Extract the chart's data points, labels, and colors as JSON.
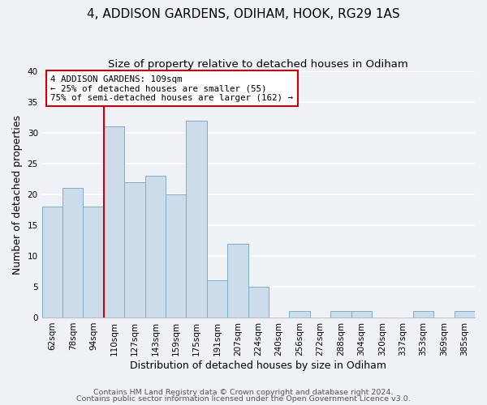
{
  "title": "4, ADDISON GARDENS, ODIHAM, HOOK, RG29 1AS",
  "subtitle": "Size of property relative to detached houses in Odiham",
  "xlabel": "Distribution of detached houses by size in Odiham",
  "ylabel": "Number of detached properties",
  "bar_labels": [
    "62sqm",
    "78sqm",
    "94sqm",
    "110sqm",
    "127sqm",
    "143sqm",
    "159sqm",
    "175sqm",
    "191sqm",
    "207sqm",
    "224sqm",
    "240sqm",
    "256sqm",
    "272sqm",
    "288sqm",
    "304sqm",
    "320sqm",
    "337sqm",
    "353sqm",
    "369sqm",
    "385sqm"
  ],
  "bar_values": [
    18,
    21,
    18,
    31,
    22,
    23,
    20,
    32,
    6,
    12,
    5,
    0,
    1,
    0,
    1,
    1,
    0,
    0,
    1,
    0,
    1
  ],
  "bar_color": "#ccdceb",
  "bar_edge_color": "#7aaec8",
  "vline_color": "#cc0000",
  "annotation_text": "4 ADDISON GARDENS: 109sqm\n← 25% of detached houses are smaller (55)\n75% of semi-detached houses are larger (162) →",
  "annotation_box_edgecolor": "#cc0000",
  "annotation_box_facecolor": "#ffffff",
  "ylim": [
    0,
    40
  ],
  "yticks": [
    0,
    5,
    10,
    15,
    20,
    25,
    30,
    35,
    40
  ],
  "footer_line1": "Contains HM Land Registry data © Crown copyright and database right 2024.",
  "footer_line2": "Contains public sector information licensed under the Open Government Licence v3.0.",
  "background_color": "#eef2f7",
  "plot_bg_color": "#eef2f7",
  "grid_color": "#ffffff",
  "title_fontsize": 11,
  "subtitle_fontsize": 9.5,
  "axis_label_fontsize": 9,
  "tick_fontsize": 7.5,
  "footer_fontsize": 6.8
}
